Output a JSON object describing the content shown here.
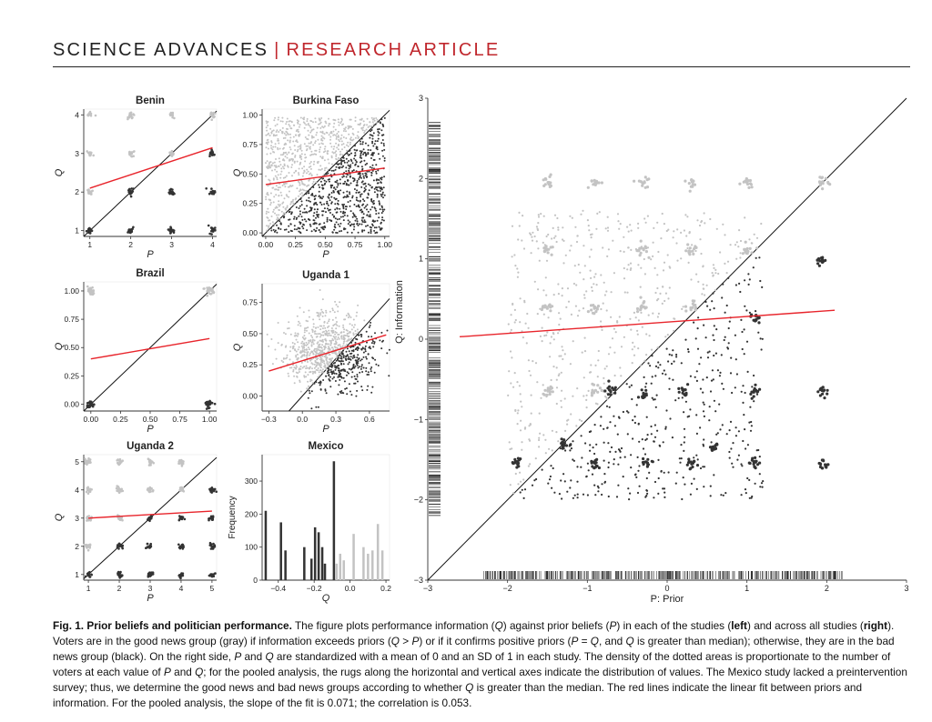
{
  "header": {
    "journal": "SCIENCE ADVANCES",
    "separator": "|",
    "article_type": "RESEARCH ARTICLE"
  },
  "colors": {
    "good_news": "#c3c3c3",
    "bad_news": "#333333",
    "fit_line": "#e8242b",
    "accent": "#c0272d"
  },
  "figure": {
    "panels": [
      {
        "id": "benin",
        "title": "Benin",
        "type": "scatter",
        "xlabel": "P",
        "ylabel": "Q",
        "xlim": [
          0.85,
          4.1
        ],
        "ylim": [
          0.85,
          4.15
        ],
        "xticks": [
          1,
          2,
          3,
          4
        ],
        "xtick_labels": [
          "1",
          "2",
          "3",
          "4"
        ],
        "yticks": [
          1,
          2,
          3,
          4
        ],
        "ytick_labels": [
          "1",
          "2",
          "3",
          "4"
        ],
        "fit": [
          [
            1,
            2.1
          ],
          [
            4,
            3.15
          ]
        ],
        "good": [
          [
            1,
            4
          ],
          [
            2,
            4
          ],
          [
            3,
            4
          ],
          [
            4,
            4
          ],
          [
            1,
            3
          ],
          [
            2,
            3
          ],
          [
            3,
            3
          ],
          [
            1,
            2
          ]
        ],
        "bad": [
          [
            1,
            1
          ],
          [
            2,
            1
          ],
          [
            3,
            1
          ],
          [
            4,
            1
          ],
          [
            2,
            2
          ],
          [
            3,
            2
          ],
          [
            4,
            2
          ],
          [
            4,
            3
          ]
        ]
      },
      {
        "id": "burkina",
        "title": "Burkina Faso",
        "type": "scatter",
        "xlabel": "P",
        "ylabel": "Q",
        "xlim": [
          -0.03,
          1.04
        ],
        "ylim": [
          -0.03,
          1.05
        ],
        "xticks": [
          0,
          0.25,
          0.5,
          0.75,
          1
        ],
        "xtick_labels": [
          "0.00",
          "0.25",
          "0.50",
          "0.75",
          "1.00"
        ],
        "yticks": [
          0,
          0.25,
          0.5,
          0.75,
          1
        ],
        "ytick_labels": [
          "0.00",
          "0.25",
          "0.50",
          "0.75",
          "1.00"
        ],
        "fit": [
          [
            0,
            0.41
          ],
          [
            1,
            0.55
          ]
        ],
        "cloud": "uniform"
      },
      {
        "id": "brazil",
        "title": "Brazil",
        "type": "scatter",
        "xlabel": "P",
        "ylabel": "Q",
        "xlim": [
          -0.06,
          1.06
        ],
        "ylim": [
          -0.06,
          1.08
        ],
        "xticks": [
          0,
          0.25,
          0.5,
          0.75,
          1
        ],
        "xtick_labels": [
          "0.00",
          "0.25",
          "0.50",
          "0.75",
          "1.00"
        ],
        "yticks": [
          0,
          0.25,
          0.5,
          0.75,
          1
        ],
        "ytick_labels": [
          "0.00",
          "0.25",
          "0.50",
          "0.75",
          "1.00"
        ],
        "fit": [
          [
            0,
            0.4
          ],
          [
            1,
            0.58
          ]
        ],
        "good": [
          [
            0,
            1
          ],
          [
            1,
            1
          ]
        ],
        "bad": [
          [
            0,
            0
          ],
          [
            1,
            0
          ]
        ]
      },
      {
        "id": "uganda1",
        "title": "Uganda 1",
        "type": "scatter",
        "xlabel": "P",
        "ylabel": "Q",
        "xlim": [
          -0.36,
          0.78
        ],
        "ylim": [
          -0.12,
          0.9
        ],
        "xticks": [
          -0.3,
          0,
          0.3,
          0.6
        ],
        "xtick_labels": [
          "−0.3",
          "0.0",
          "0.3",
          "0.6"
        ],
        "yticks": [
          0,
          0.25,
          0.5,
          0.75
        ],
        "ytick_labels": [
          "0.00",
          "0.25",
          "0.50",
          "0.75"
        ],
        "fit": [
          [
            -0.3,
            0.2
          ],
          [
            0.75,
            0.49
          ]
        ],
        "cloud": "gaussian"
      },
      {
        "id": "uganda2",
        "title": "Uganda 2",
        "type": "scatter",
        "xlabel": "P",
        "ylabel": "Q",
        "xlim": [
          0.85,
          5.15
        ],
        "ylim": [
          0.8,
          5.25
        ],
        "xticks": [
          1,
          2,
          3,
          4,
          5
        ],
        "xtick_labels": [
          "1",
          "2",
          "3",
          "4",
          "5"
        ],
        "yticks": [
          1,
          2,
          3,
          4,
          5
        ],
        "ytick_labels": [
          "1",
          "2",
          "3",
          "4",
          "5"
        ],
        "fit": [
          [
            1,
            3
          ],
          [
            5,
            3.25
          ]
        ],
        "good": [
          [
            1,
            5
          ],
          [
            2,
            5
          ],
          [
            3,
            5
          ],
          [
            4,
            5
          ],
          [
            1,
            4
          ],
          [
            2,
            4
          ],
          [
            3,
            4
          ],
          [
            4,
            4
          ],
          [
            1,
            3
          ],
          [
            2,
            3
          ],
          [
            1,
            2
          ]
        ],
        "bad": [
          [
            1,
            1
          ],
          [
            2,
            1
          ],
          [
            3,
            1
          ],
          [
            4,
            1
          ],
          [
            5,
            1
          ],
          [
            2,
            2
          ],
          [
            3,
            2
          ],
          [
            4,
            2
          ],
          [
            5,
            2
          ],
          [
            3,
            3
          ],
          [
            4,
            3
          ],
          [
            5,
            3
          ],
          [
            5,
            4
          ]
        ]
      },
      {
        "id": "mexico",
        "title": "Mexico",
        "type": "histogram",
        "xlabel": "Q",
        "ylabel": "Frequency",
        "xlim": [
          -0.49,
          0.22
        ],
        "ylim": [
          0,
          380
        ],
        "xticks": [
          -0.4,
          -0.2,
          0,
          0.2
        ],
        "xtick_labels": [
          "−0.4",
          "−0.2",
          "0.0",
          "0.2"
        ],
        "yticks": [
          0,
          100,
          200,
          300
        ],
        "ytick_labels": [
          "0",
          "100",
          "200",
          "300"
        ],
        "bins": [
          [
            -0.47,
            210,
            "bad"
          ],
          [
            -0.385,
            175,
            "bad"
          ],
          [
            -0.36,
            90,
            "bad"
          ],
          [
            -0.255,
            100,
            "bad"
          ],
          [
            -0.215,
            65,
            "bad"
          ],
          [
            -0.195,
            160,
            "bad"
          ],
          [
            -0.175,
            145,
            "bad"
          ],
          [
            -0.155,
            100,
            "bad"
          ],
          [
            -0.14,
            50,
            "bad"
          ],
          [
            -0.09,
            360,
            "bad"
          ],
          [
            -0.075,
            50,
            "good"
          ],
          [
            -0.055,
            80,
            "good"
          ],
          [
            -0.035,
            60,
            "good"
          ],
          [
            0.02,
            140,
            "good"
          ],
          [
            0.075,
            100,
            "good"
          ],
          [
            0.1,
            80,
            "good"
          ],
          [
            0.125,
            90,
            "good"
          ],
          [
            0.155,
            170,
            "good"
          ],
          [
            0.18,
            90,
            "good"
          ]
        ]
      },
      {
        "id": "pooled",
        "title": "",
        "type": "scatter",
        "xlabel": "P: Prior",
        "ylabel": "Q: Information",
        "xlim": [
          -3,
          3
        ],
        "ylim": [
          -3,
          3
        ],
        "xticks": [
          -3,
          -2,
          -1,
          0,
          1,
          2,
          3
        ],
        "xtick_labels": [
          "−3",
          "−2",
          "−1",
          "0",
          "1",
          "2",
          "3"
        ],
        "yticks": [
          -3,
          -2,
          -1,
          0,
          1,
          2,
          3
        ],
        "ytick_labels": [
          "−3",
          "−2",
          "−1",
          "0",
          "1",
          "2",
          "3"
        ],
        "fit": [
          [
            -2.6,
            0.03
          ],
          [
            2.1,
            0.36
          ]
        ],
        "slope": 0.071,
        "correlation": 0.053,
        "good": [
          [
            -1.5,
            1.95
          ],
          [
            -0.9,
            1.95
          ],
          [
            -0.3,
            1.95
          ],
          [
            0.3,
            1.95
          ],
          [
            1.0,
            1.95
          ],
          [
            1.95,
            1.95
          ],
          [
            -1.5,
            1.1
          ],
          [
            -0.3,
            1.1
          ],
          [
            0.3,
            1.1
          ],
          [
            1.0,
            1.1
          ],
          [
            -1.5,
            0.4
          ],
          [
            -0.9,
            0.4
          ],
          [
            -0.3,
            0.4
          ],
          [
            0.3,
            0.4
          ],
          [
            -1.5,
            -0.65
          ],
          [
            -0.9,
            -0.65
          ]
        ],
        "bad": [
          [
            -1.9,
            -1.55
          ],
          [
            -1.3,
            -1.3
          ],
          [
            -0.7,
            -0.65
          ],
          [
            0.2,
            -0.65
          ],
          [
            1.1,
            -0.65
          ],
          [
            1.95,
            -0.65
          ],
          [
            -0.3,
            -0.7
          ],
          [
            -0.9,
            -1.55
          ],
          [
            -0.25,
            -1.55
          ],
          [
            0.3,
            -1.55
          ],
          [
            1.1,
            -1.55
          ],
          [
            1.95,
            -1.55
          ],
          [
            1.95,
            1.0
          ],
          [
            0.6,
            -1.35
          ],
          [
            1.1,
            0.25
          ]
        ]
      }
    ]
  },
  "caption": {
    "label": "Fig. 1. Prior beliefs and politician performance.",
    "parts": [
      {
        "t": " The figure plots performance information (",
        "s": "n"
      },
      {
        "t": "Q",
        "s": "i"
      },
      {
        "t": ") against prior beliefs (",
        "s": "n"
      },
      {
        "t": "P",
        "s": "i"
      },
      {
        "t": ") in each of the studies (",
        "s": "n"
      },
      {
        "t": "left",
        "s": "b"
      },
      {
        "t": ") and across all studies (",
        "s": "n"
      },
      {
        "t": "right",
        "s": "b"
      },
      {
        "t": "). Voters are in the good news group (gray) if information exceeds priors (",
        "s": "n"
      },
      {
        "t": "Q",
        "s": "i"
      },
      {
        "t": " > ",
        "s": "n"
      },
      {
        "t": "P",
        "s": "i"
      },
      {
        "t": ") or if it confirms positive priors (",
        "s": "n"
      },
      {
        "t": "P",
        "s": "i"
      },
      {
        "t": " = ",
        "s": "n"
      },
      {
        "t": "Q",
        "s": "i"
      },
      {
        "t": ", and ",
        "s": "n"
      },
      {
        "t": "Q",
        "s": "i"
      },
      {
        "t": " is greater than median); otherwise, they are in the bad news group (black). On the right side, ",
        "s": "n"
      },
      {
        "t": "P",
        "s": "i"
      },
      {
        "t": " and ",
        "s": "n"
      },
      {
        "t": "Q",
        "s": "i"
      },
      {
        "t": " are standardized with a mean of 0 and an SD of 1 in each study. The density of the dotted areas is proportionate to the number of voters at each value of ",
        "s": "n"
      },
      {
        "t": "P",
        "s": "i"
      },
      {
        "t": " and ",
        "s": "n"
      },
      {
        "t": "Q",
        "s": "i"
      },
      {
        "t": "; for the pooled analysis, the rugs along the horizontal and vertical axes indicate the distribution of values. The Mexico study lacked a preintervention survey; thus, we determine the good news and bad news groups according to whether ",
        "s": "n"
      },
      {
        "t": "Q",
        "s": "i"
      },
      {
        "t": " is greater than the median. The red lines indicate the linear fit between priors and information. For the pooled analysis, the slope of the fit is 0.071; the correlation is 0.053.",
        "s": "n"
      }
    ]
  }
}
